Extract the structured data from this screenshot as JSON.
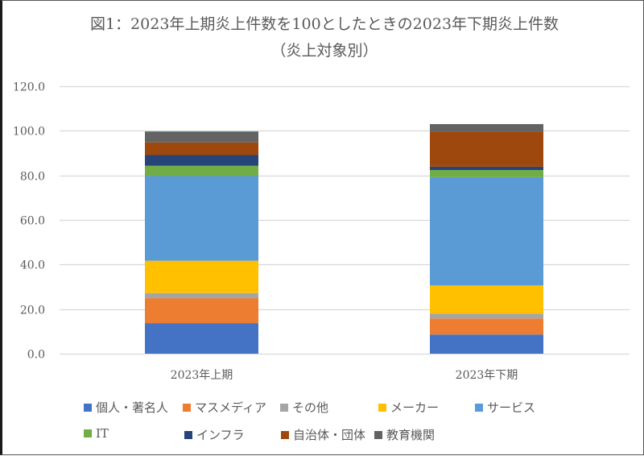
{
  "chart_data": {
    "type": "bar",
    "stacked": true,
    "title": "図1：2023年上期炎上件数を100としたときの2023年下期炎上件数",
    "subtitle": "（炎上対象別）",
    "xlabel": "",
    "ylabel": "",
    "ylim": [
      0,
      120
    ],
    "yticks": [
      "0.0",
      "20.0",
      "40.0",
      "60.0",
      "80.0",
      "100.0",
      "120.0"
    ],
    "ytick_values": [
      0,
      20,
      40,
      60,
      80,
      100,
      120
    ],
    "grid": true,
    "legend_position": "bottom",
    "categories": [
      "2023年上期",
      "2023年下期"
    ],
    "series": [
      {
        "name": "個人・著名人",
        "color": "#4472C4",
        "values": [
          13.7,
          8.6
        ]
      },
      {
        "name": "マスメディア",
        "color": "#ED7D31",
        "values": [
          11.2,
          7.2
        ]
      },
      {
        "name": "その他",
        "color": "#A5A5A5",
        "values": [
          2.3,
          2.2
        ]
      },
      {
        "name": "メーカー",
        "color": "#FFC000",
        "values": [
          14.5,
          12.6
        ]
      },
      {
        "name": "サービス",
        "color": "#5B9BD5",
        "values": [
          38.0,
          48.6
        ]
      },
      {
        "name": "IT",
        "color": "#70AD47",
        "values": [
          4.6,
          3.2
        ]
      },
      {
        "name": "インフラ",
        "color": "#264478",
        "values": [
          4.8,
          1.5
        ]
      },
      {
        "name": "自治体・団体",
        "color": "#9E480E",
        "values": [
          5.7,
          15.8
        ]
      },
      {
        "name": "教育機関",
        "color": "#636363",
        "values": [
          4.9,
          3.3
        ]
      }
    ]
  }
}
